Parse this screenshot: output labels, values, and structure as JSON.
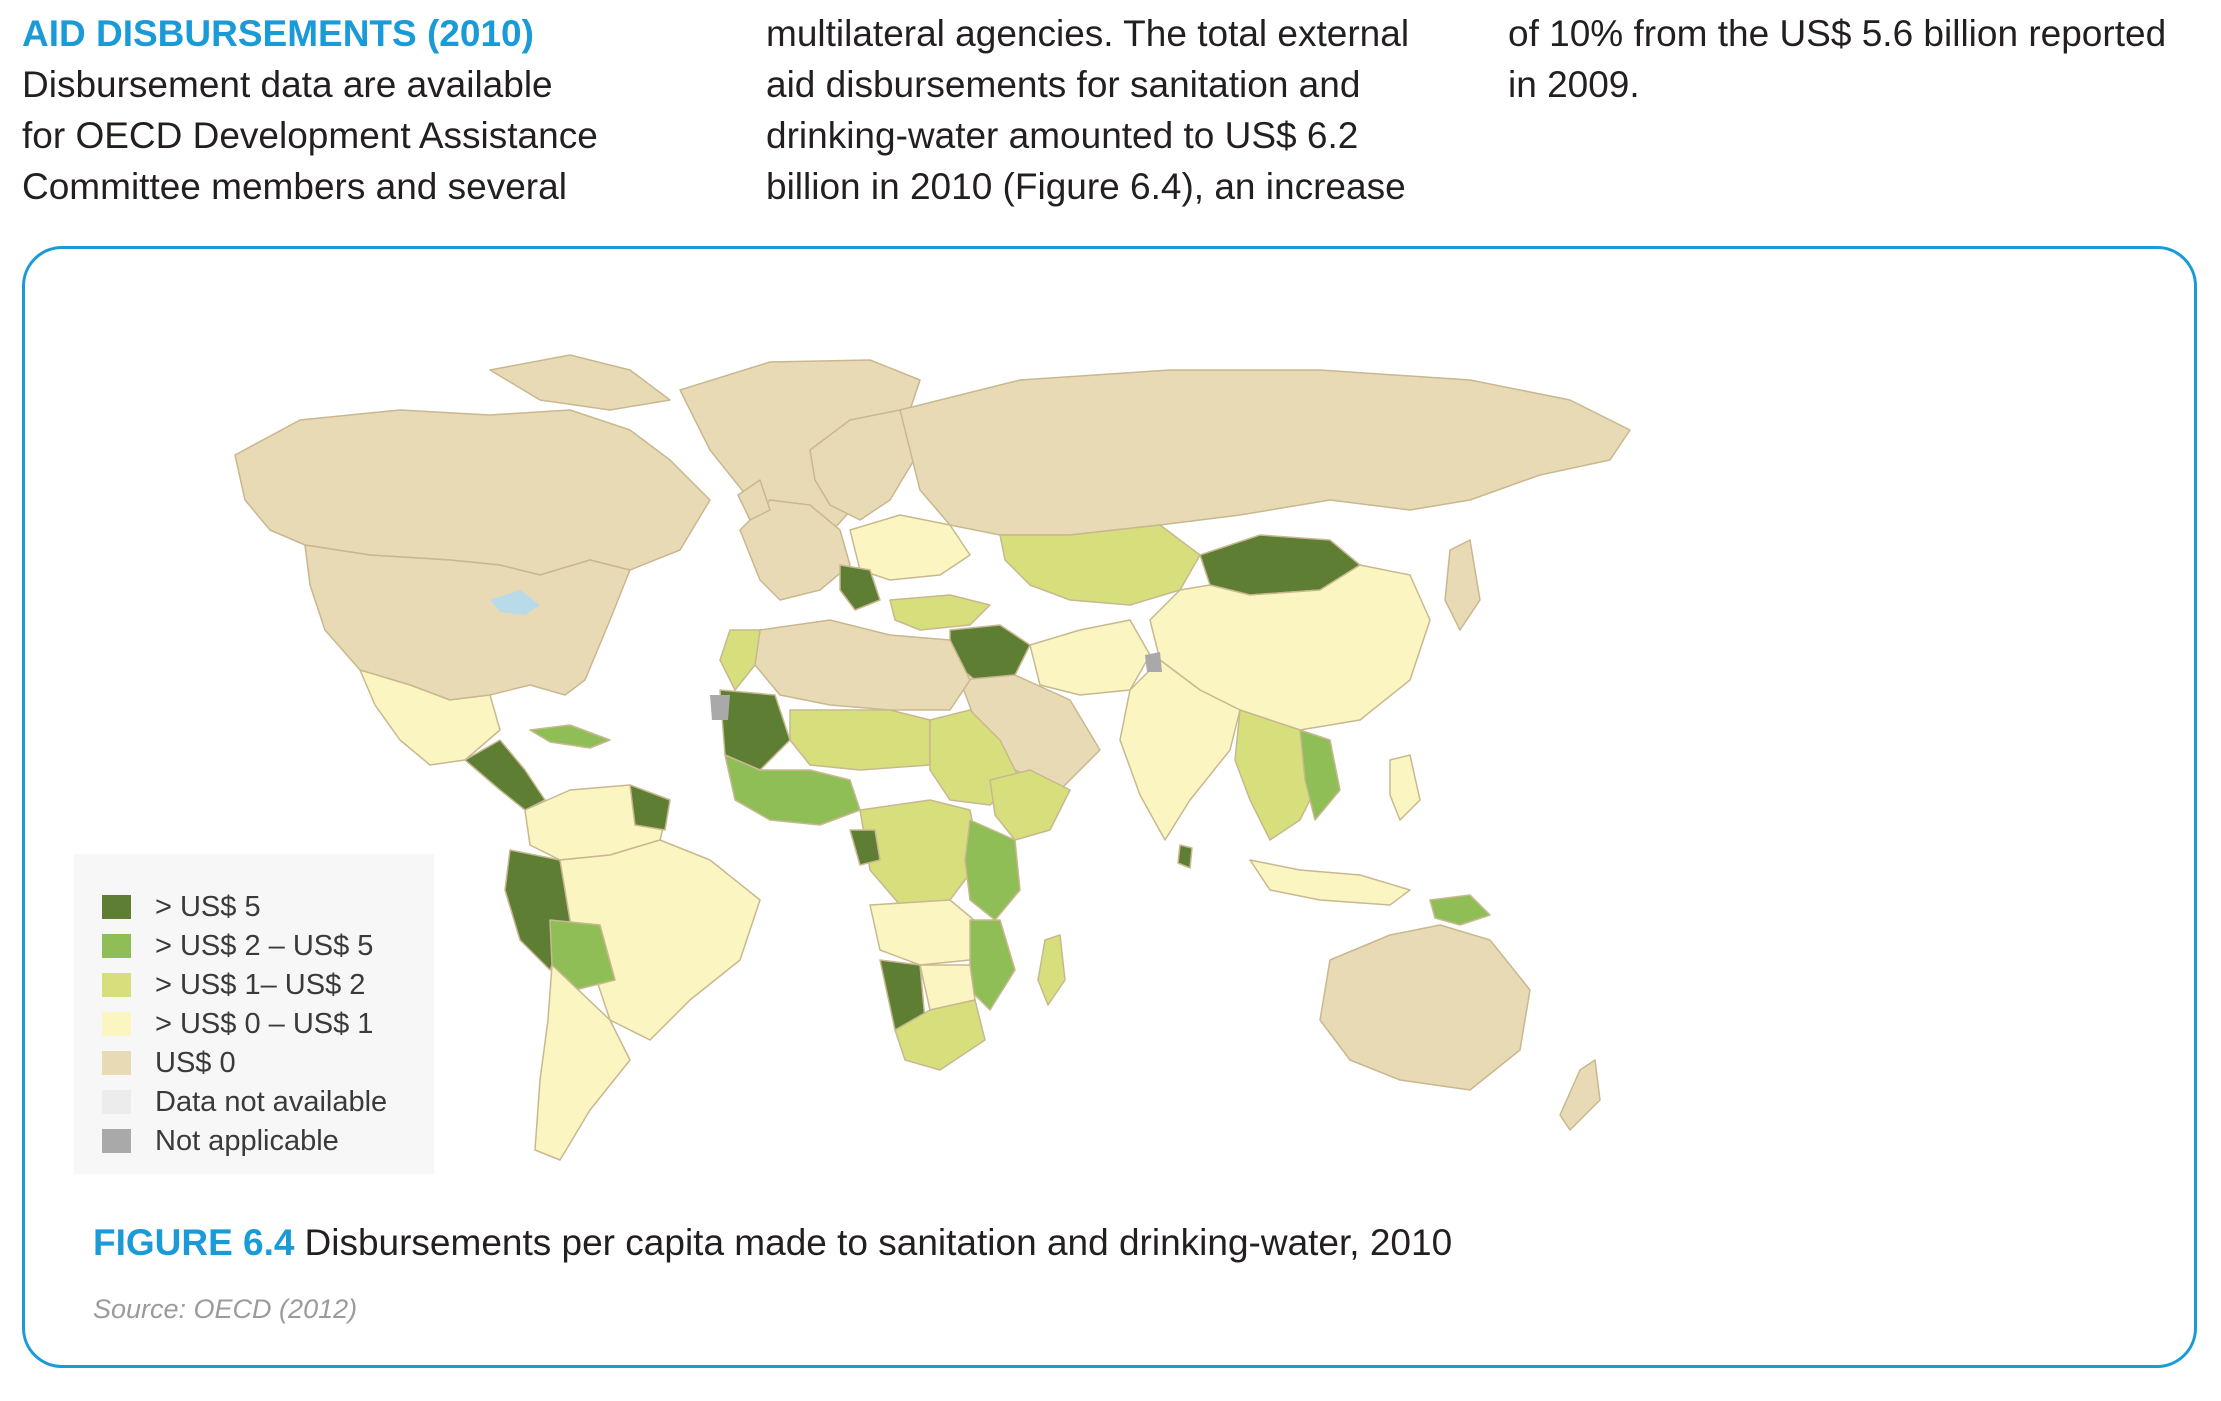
{
  "intro": {
    "heading": "AID DISBURSEMENTS (2010)",
    "column1_lines": [
      "Disbursement data are available",
      "for OECD Development Assistance",
      "Committee members and several"
    ],
    "column2_lines": [
      "multilateral agencies. The total external",
      "aid disbursements for sanitation and",
      "drinking-water amounted to US$ 6.2",
      "billion in 2010 (Figure 6.4), an increase"
    ],
    "column3_lines": [
      "of 10% from the US$ 5.6 billion reported",
      "in 2009."
    ]
  },
  "figure": {
    "label": "FIGURE 6.4",
    "caption": "Disbursements per capita made to sanitation and drinking-water, 2010",
    "source": "Source: OECD (2012)"
  },
  "legend": {
    "items": [
      {
        "label": "> US$ 5",
        "color": "#5e7e34"
      },
      {
        "label": "> US$ 2 – US$ 5",
        "color": "#8fbe57"
      },
      {
        "label": "> US$ 1– US$ 2",
        "color": "#d6df7c"
      },
      {
        "label": "> US$ 0 – US$ 1",
        "color": "#fbf5c2"
      },
      {
        "label": "US$ 0",
        "color": "#e8dab4"
      },
      {
        "label": "Data not available",
        "color": "#ececec"
      },
      {
        "label": "Not applicable",
        "color": "#a9a9a9"
      }
    ]
  },
  "colors": {
    "accent": "#1a9bd7",
    "land_zero": "#e8dab4",
    "water": "#b9dbe9"
  }
}
